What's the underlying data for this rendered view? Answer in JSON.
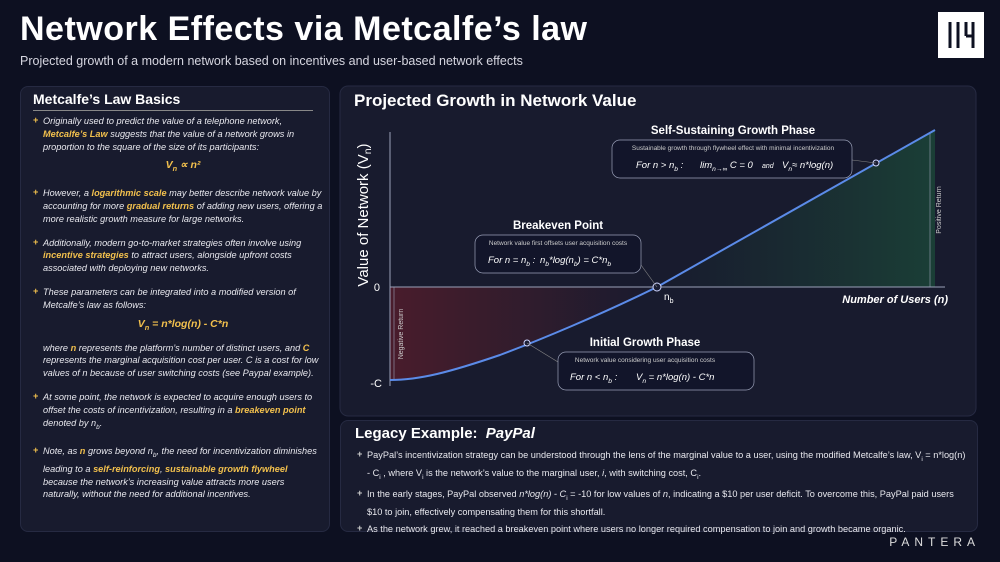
{
  "header": {
    "title": "Network Effects via Metcalfe’s law",
    "subtitle": "Projected growth of a modern network based on incentives and user-based network effects"
  },
  "basics": {
    "title": "Metcalfe’s Law Basics",
    "items": [
      {
        "text": [
          "Originally used to predict the value of a telephone network, ",
          {
            "text": "Metcalfe’s Law",
            "color": "#f2c04d"
          },
          " suggests that the value of a network grows in proportion to the square of the size of its participants:"
        ],
        "formula": [
          "V",
          {
            "text": "n",
            "sub": true
          },
          " ∝ n²"
        ]
      },
      {
        "text": [
          "However, a ",
          {
            "text": "logarithmic scale",
            "color": "#f2c04d"
          },
          " may better describe network value by accounting for more ",
          {
            "text": "gradual returns",
            "color": "#f2c04d"
          },
          " of adding new users, offering a more realistic growth measure for large networks."
        ]
      },
      {
        "text": [
          "Additionally, modern go-to-market strategies often involve using ",
          {
            "text": "incentive strategies",
            "color": "#f2c04d"
          },
          " to attract users, alongside upfront costs associated with deploying new networks."
        ]
      },
      {
        "text": [
          "These parameters can be integrated into a modified version of Metcalfe’s law as follows:"
        ],
        "formula": [
          "V",
          {
            "text": "n",
            "sub": true
          },
          " = n*log(n) - C*n"
        ],
        "note": [
          "where ",
          {
            "text": "n",
            "color": "#f2c04d"
          },
          " represents the platform’s number of distinct users, and ",
          {
            "text": "C",
            "color": "#f2c04d"
          },
          " represents the marginal acquisition cost per user. C is a cost for low values of n because of user switching costs (see Paypal example)."
        ]
      },
      {
        "text": [
          "At some point, the network is expected to acquire enough users to offset the costs of incentivization, resulting in a ",
          {
            "text": "breakeven point",
            "color": "#f2c04d"
          },
          " denoted by n",
          {
            "text": "b",
            "sub": true
          },
          "."
        ]
      },
      {
        "text": [
          "Note, as ",
          {
            "text": "n",
            "color": "#f2c04d"
          },
          " grows beyond n",
          {
            "text": "b",
            "sub": true
          },
          ", the need for incentivization diminishes leading to a ",
          {
            "text": "self-reinforcing",
            "color": "#f2c04d"
          },
          ", ",
          {
            "text": "sustainable growth flywheel",
            "color": "#f2c04d"
          },
          " because the network’s increasing value attracts more users naturally, without the need for additional incentives."
        ]
      }
    ]
  },
  "diagram": {
    "title": "Projected Growth in Network Value",
    "y_label": [
      "Value of Network (V",
      {
        "text": "n",
        "sub": true
      },
      ")"
    ],
    "x_label": "Number of Users (n)",
    "zero_label": "0",
    "min_label": "-C",
    "breakeven_label": [
      "n",
      {
        "text": "b",
        "sub": true
      }
    ],
    "positive_label": "Positive Return",
    "negative_label": "Negative Return",
    "callouts": [
      {
        "title": "Self-Sustaining Growth Phase",
        "subtitle": "Sustainable growth through flywheel effect with minimal incentivization",
        "formula": [
          [
            "For n > n",
            {
              "text": "b",
              "sub": true
            },
            " :"
          ],
          [
            "lim",
            {
              "text": "n→∞",
              "sub": true
            },
            " C = 0"
          ],
          "and",
          [
            "V",
            {
              "text": "n",
              "sub": true
            },
            "≈ n*log(n)"
          ]
        ]
      },
      {
        "title": "Breakeven Point",
        "subtitle": "Network value first offsets user acquisition costs",
        "formula": [
          [
            "For n = n",
            {
              "text": "b",
              "sub": true
            },
            " :"
          ],
          [
            "n",
            {
              "text": "b",
              "sub": true
            },
            "*log(n",
            {
              "text": "b",
              "sub": true
            },
            ") = C*n",
            {
              "text": "b",
              "sub": true
            }
          ]
        ]
      },
      {
        "title": "Initial Growth Phase",
        "subtitle": "Network value considering user acquisition costs",
        "formula": [
          [
            "For n < n",
            {
              "text": "b",
              "sub": true
            },
            " :"
          ],
          [
            "V",
            {
              "text": "n",
              "sub": true
            },
            " = n*log(n) - C*n"
          ]
        ]
      }
    ]
  },
  "legacy": {
    "title": "Legacy Example:",
    "brand": "PayPal",
    "items": [
      [
        "PayPal’s incentivization strategy can be understood through the lens of the marginal value to a user, using the modified Metcalfe’s law, V",
        {
          "text": "i",
          "sub": true
        },
        " = n*log(n) - C",
        {
          "text": "i",
          "sub": true
        },
        " , where V",
        {
          "text": "i",
          "sub": true
        },
        " is the network’s value to the marginal user, ",
        {
          "text": "i",
          "italic": true
        },
        ", with switching cost, C",
        {
          "text": "i",
          "sub": true
        },
        "."
      ],
      [
        "In the early stages, PayPal observed ",
        {
          "text": "n*log(n) - C",
          "italic": true
        },
        {
          "text": "i",
          "sub": true
        },
        " = -10 for low values of ",
        {
          "text": "n",
          "italic": true
        },
        ", indicating a $10 per user deficit. To overcome this, PayPal paid users $10 to join, effectively compensating them for this shortfall."
      ],
      [
        "As the network grew, it reached a breakeven point where users no longer required compensation to join and growth became organic."
      ]
    ]
  },
  "footer": {
    "brand": "PANTERA"
  }
}
